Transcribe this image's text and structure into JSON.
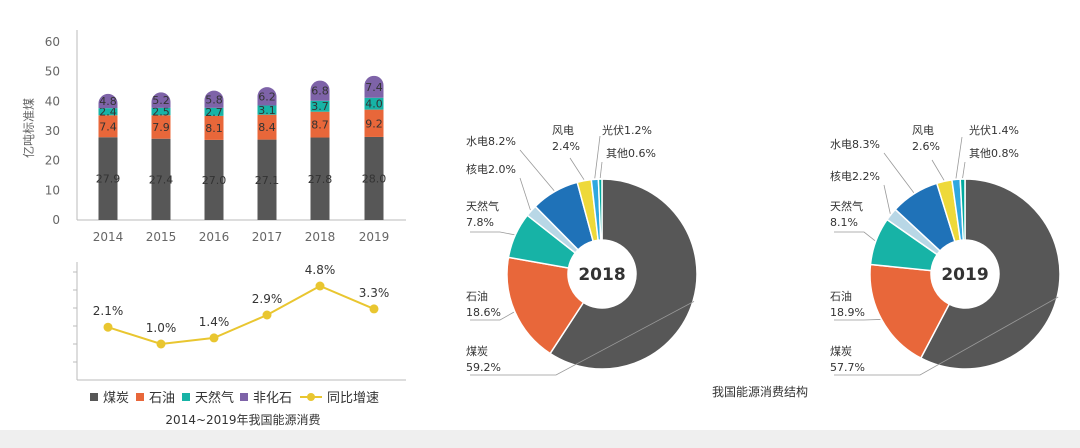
{
  "chart_data": [
    {
      "type": "bar",
      "stacked": true,
      "ylabel": "亿吨标准煤",
      "categories": [
        "2014",
        "2015",
        "2016",
        "2017",
        "2018",
        "2019"
      ],
      "ylim": [
        0,
        60
      ],
      "yticks": [
        "0",
        "10",
        "20",
        "30",
        "40",
        "50",
        "60"
      ],
      "series": [
        {
          "name": "煤炭",
          "color": "#575757",
          "values": [
            27.9,
            27.4,
            27.0,
            27.1,
            27.8,
            28.0
          ]
        },
        {
          "name": "石油",
          "color": "#E8673A",
          "values": [
            7.4,
            7.9,
            8.1,
            8.4,
            8.7,
            9.2
          ]
        },
        {
          "name": "天然气",
          "color": "#17B3A6",
          "values": [
            2.4,
            2.5,
            2.7,
            3.1,
            3.7,
            4.0
          ]
        },
        {
          "name": "非化石",
          "color": "#7E63A8",
          "values": [
            4.8,
            5.2,
            5.8,
            6.2,
            6.8,
            7.4
          ]
        }
      ]
    },
    {
      "type": "line",
      "categories": [
        "2014",
        "2015",
        "2016",
        "2017",
        "2018",
        "2019"
      ],
      "series": [
        {
          "name": "同比增速",
          "color": "#E9C630",
          "values": [
            2.1,
            1.0,
            1.4,
            2.9,
            4.8,
            3.3
          ],
          "labels": [
            "2.1%",
            "1.0%",
            "1.4%",
            "2.9%",
            "4.8%",
            "3.3%"
          ]
        }
      ]
    },
    {
      "type": "pie",
      "center_label": "2018",
      "slices": [
        {
          "name": "煤炭",
          "value": 59.2,
          "color": "#575757",
          "label_lines": [
            "煤炭",
            "59.2%"
          ]
        },
        {
          "name": "石油",
          "value": 18.6,
          "color": "#E8673A",
          "label_lines": [
            "石油",
            "18.6%"
          ]
        },
        {
          "name": "天然气",
          "value": 7.8,
          "color": "#17B3A6",
          "label_lines": [
            "天然气",
            "7.8%"
          ]
        },
        {
          "name": "核电",
          "value": 2.0,
          "color": "#B8D7E6",
          "label_lines": [
            "核电2.0%"
          ]
        },
        {
          "name": "水电",
          "value": 8.2,
          "color": "#1F72B8",
          "label_lines": [
            "水电8.2%"
          ]
        },
        {
          "name": "风电",
          "value": 2.4,
          "color": "#EED93A",
          "label_lines": [
            "风电",
            "2.4%"
          ]
        },
        {
          "name": "光伏",
          "value": 1.2,
          "color": "#2FA8E0",
          "label_lines": [
            "光伏1.2%"
          ]
        },
        {
          "name": "其他",
          "value": 0.6,
          "color": "#00A99D",
          "label_lines": [
            "其他0.6%"
          ]
        }
      ]
    },
    {
      "type": "pie",
      "center_label": "2019",
      "slices": [
        {
          "name": "煤炭",
          "value": 57.7,
          "color": "#575757",
          "label_lines": [
            "煤炭",
            "57.7%"
          ]
        },
        {
          "name": "石油",
          "value": 18.9,
          "color": "#E8673A",
          "label_lines": [
            "石油",
            "18.9%"
          ]
        },
        {
          "name": "天然气",
          "value": 8.1,
          "color": "#17B3A6",
          "label_lines": [
            "天然气",
            "8.1%"
          ]
        },
        {
          "name": "核电",
          "value": 2.2,
          "color": "#B8D7E6",
          "label_lines": [
            "核电2.2%"
          ]
        },
        {
          "name": "水电",
          "value": 8.3,
          "color": "#1F72B8",
          "label_lines": [
            "水电8.3%"
          ]
        },
        {
          "name": "风电",
          "value": 2.6,
          "color": "#EED93A",
          "label_lines": [
            "风电",
            "2.6%"
          ]
        },
        {
          "name": "光伏",
          "value": 1.4,
          "color": "#2FA8E0",
          "label_lines": [
            "光伏1.4%"
          ]
        },
        {
          "name": "其他",
          "value": 0.8,
          "color": "#00A99D",
          "label_lines": [
            "其他0.8%"
          ]
        }
      ]
    }
  ],
  "legend": [
    {
      "label": "煤炭",
      "color": "#575757",
      "kind": "square"
    },
    {
      "label": "石油",
      "color": "#E8673A",
      "kind": "square"
    },
    {
      "label": "天然气",
      "color": "#17B3A6",
      "kind": "square"
    },
    {
      "label": "非化石",
      "color": "#7E63A8",
      "kind": "square"
    },
    {
      "label": "同比增速",
      "color": "#E9C630",
      "kind": "line"
    }
  ],
  "captions": {
    "left": "2014~2019年我国能源消费",
    "right": "我国能源消费结构"
  }
}
